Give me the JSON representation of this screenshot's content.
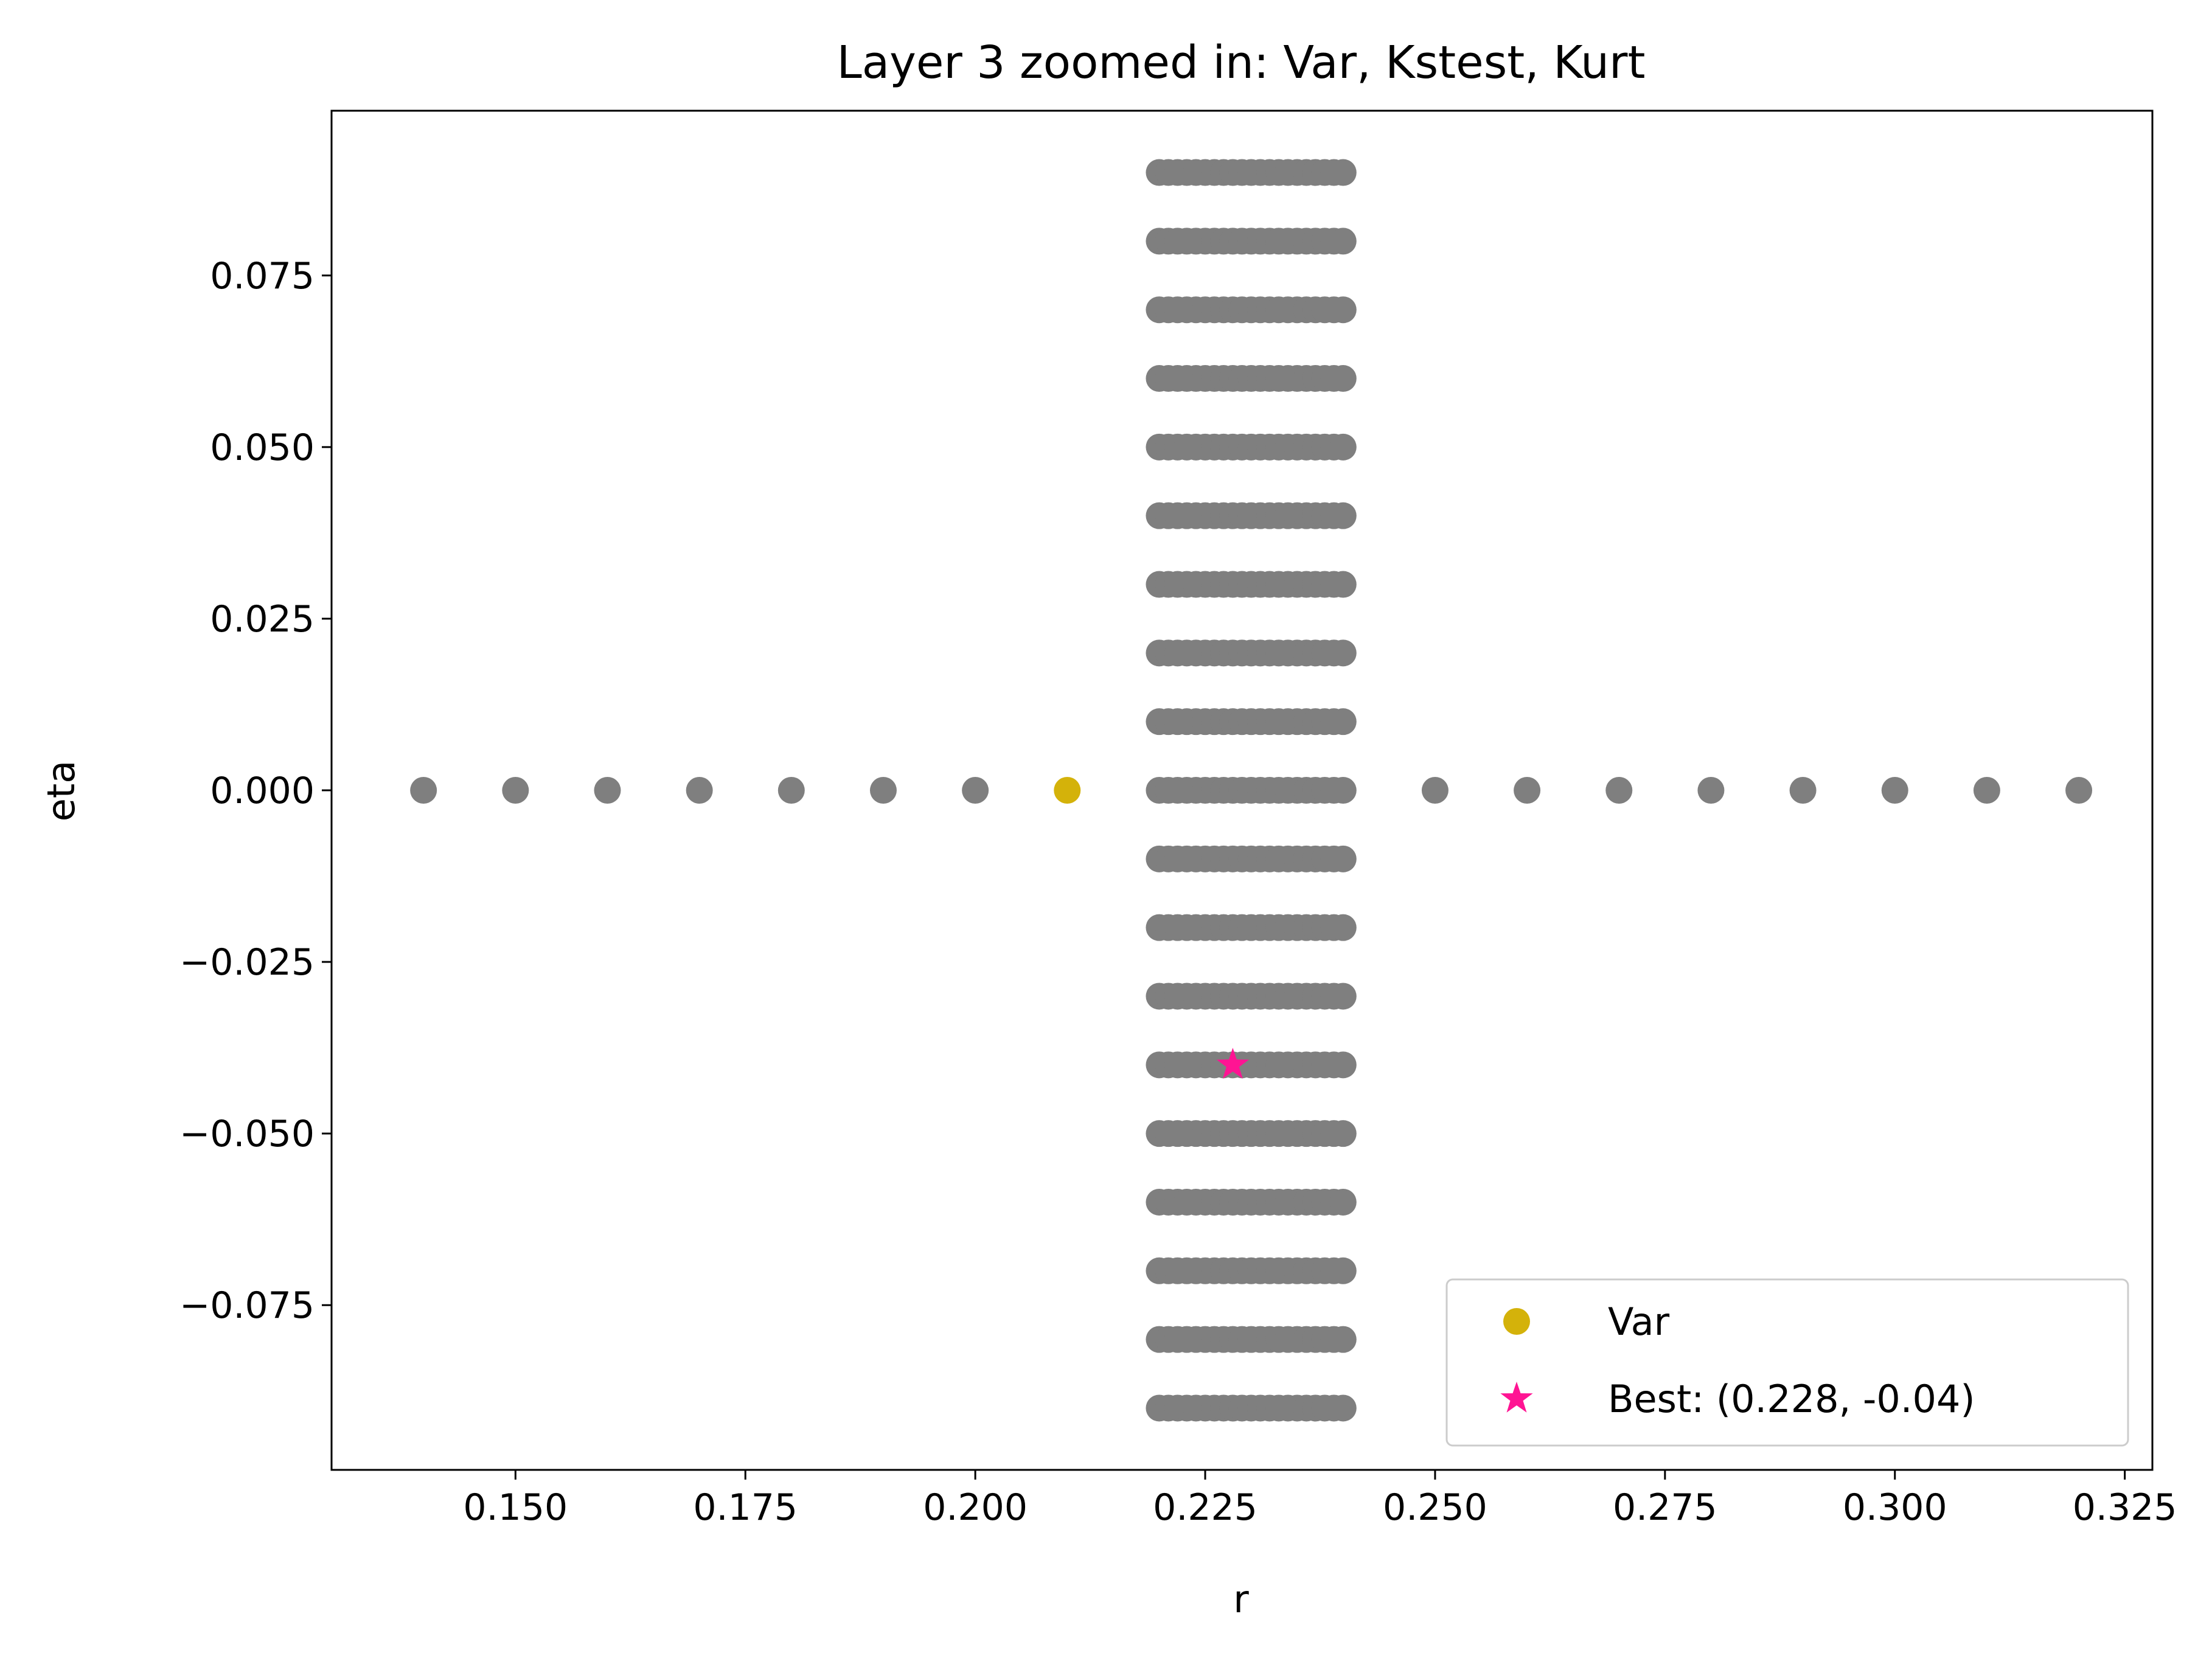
{
  "chart_data": {
    "type": "scatter",
    "title": "Layer 3 zoomed in: Var, Kstest, Kurt",
    "xlabel": "r",
    "ylabel": "eta",
    "xlim": [
      0.13,
      0.328
    ],
    "ylim": [
      -0.099,
      0.099
    ],
    "xticks": [
      0.15,
      0.175,
      0.2,
      0.225,
      0.25,
      0.275,
      0.3,
      0.325
    ],
    "xtick_labels": [
      "0.150",
      "0.175",
      "0.200",
      "0.225",
      "0.250",
      "0.275",
      "0.300",
      "0.325"
    ],
    "yticks": [
      -0.075,
      -0.05,
      -0.025,
      0.0,
      0.025,
      0.05,
      0.075
    ],
    "ytick_labels": [
      "−0.075",
      "−0.050",
      "−0.025",
      "0.000",
      "0.025",
      "0.050",
      "0.075"
    ],
    "grid": false,
    "legend_position": "bottom-right",
    "grid_points": {
      "color": "#7f7f7f",
      "horizontal_line": {
        "eta": 0.0,
        "r": [
          0.14,
          0.15,
          0.16,
          0.17,
          0.18,
          0.19,
          0.2,
          0.25,
          0.26,
          0.27,
          0.28,
          0.29,
          0.3,
          0.31,
          0.32
        ]
      },
      "dense_block": {
        "r_min": 0.22,
        "r_max": 0.24,
        "r_step": 0.001,
        "eta": [
          -0.09,
          -0.08,
          -0.07,
          -0.06,
          -0.05,
          -0.04,
          -0.03,
          -0.02,
          -0.01,
          0.0,
          0.01,
          0.02,
          0.03,
          0.04,
          0.05,
          0.06,
          0.07,
          0.08,
          0.09
        ]
      }
    },
    "series": [
      {
        "name": "Var",
        "marker": "circle",
        "color": "#d4b20a",
        "points": [
          [
            0.21,
            0.0
          ]
        ]
      },
      {
        "name": "Best: (0.228, -0.04)",
        "marker": "star",
        "color": "#ff1493",
        "points": [
          [
            0.228,
            -0.04
          ]
        ]
      }
    ]
  }
}
